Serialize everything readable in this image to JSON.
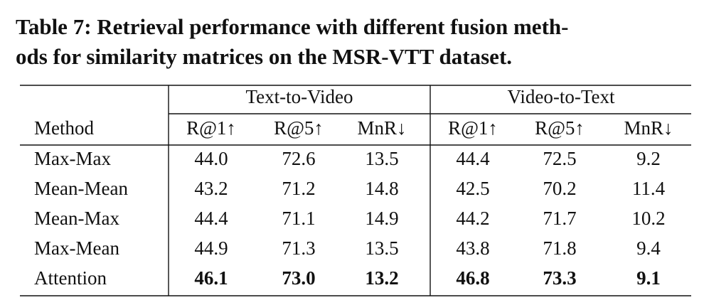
{
  "caption": {
    "lines": [
      "Table 7: Retrieval performance with different fusion meth-",
      "ods for similarity matrices on the MSR-VTT dataset."
    ]
  },
  "table": {
    "groups": [
      "Text-to-Video",
      "Video-to-Text"
    ],
    "columns": [
      "Method",
      "R@1↑",
      "R@5↑",
      "MnR↓",
      "R@1↑",
      "R@5↑",
      "MnR↓"
    ],
    "rows": [
      {
        "method": "Max-Max",
        "values": [
          "44.0",
          "72.6",
          "13.5",
          "44.4",
          "72.5",
          "9.2"
        ],
        "bold": false
      },
      {
        "method": "Mean-Mean",
        "values": [
          "43.2",
          "71.2",
          "14.8",
          "42.5",
          "70.2",
          "11.4"
        ],
        "bold": false
      },
      {
        "method": "Mean-Max",
        "values": [
          "44.4",
          "71.1",
          "14.9",
          "44.2",
          "71.7",
          "10.2"
        ],
        "bold": false
      },
      {
        "method": "Max-Mean",
        "values": [
          "44.9",
          "71.3",
          "13.5",
          "43.8",
          "71.8",
          "9.4"
        ],
        "bold": false
      },
      {
        "method": "Attention",
        "values": [
          "46.1",
          "73.0",
          "13.2",
          "46.8",
          "73.3",
          "9.1"
        ],
        "bold": true
      }
    ]
  }
}
